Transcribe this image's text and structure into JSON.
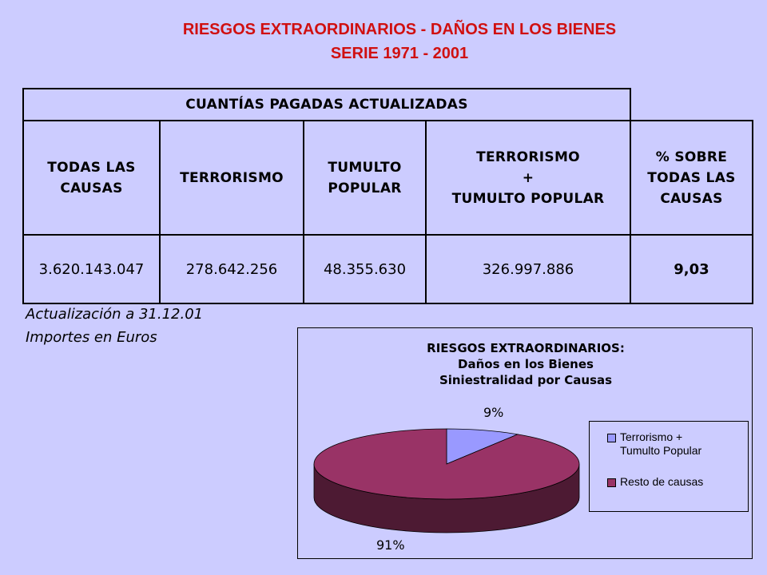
{
  "title": {
    "line1": "RIESGOS EXTRAORDINARIOS - DAÑOS EN LOS BIENES",
    "line2": "SERIE 1971 - 2001"
  },
  "table": {
    "group_header": "CUANTÍAS PAGADAS ACTUALIZADAS",
    "headers": [
      [
        "TODAS LAS",
        "CAUSAS"
      ],
      [
        "TERRORISMO"
      ],
      [
        "TUMULTO",
        "POPULAR"
      ],
      [
        "TERRORISMO",
        "+",
        "TUMULTO POPULAR"
      ],
      [
        "% SOBRE",
        "TODAS LAS",
        "CAUSAS"
      ]
    ],
    "values": [
      "3.620.143.047",
      "278.642.256",
      "48.355.630",
      "326.997.886",
      "9,03"
    ]
  },
  "notes": {
    "update": "Actualización a 31.12.01",
    "units": "Importes en Euros"
  },
  "chart_data": {
    "type": "pie",
    "title": [
      "RIESGOS EXTRAORDINARIOS:",
      "Daños en los Bienes",
      "Siniestralidad por Causas"
    ],
    "slices": [
      {
        "label": "Terrorismo + Tumulto Popular",
        "legend_lines": [
          "Terrorismo +",
          "Tumulto Popular"
        ],
        "value": 9,
        "label_text": "9%",
        "color": "#9999ff",
        "side_color": "#6b6bb3"
      },
      {
        "label": "Resto de causas",
        "legend_lines": [
          "Resto de causas"
        ],
        "value": 91,
        "label_text": "91%",
        "color": "#993366",
        "side_color": "#4d1a33"
      }
    ],
    "legend_position": "right"
  }
}
